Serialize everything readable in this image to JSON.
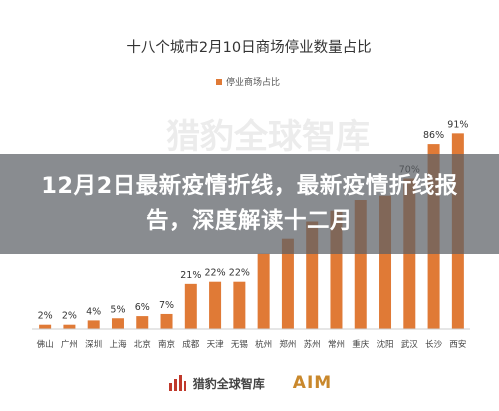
{
  "chart_data": {
    "type": "bar",
    "title": "十八个城市2月10日商场停业数量占比",
    "legend": "停业商场占比",
    "legend_position": "top-center",
    "categories": [
      "佛山",
      "广州",
      "深圳",
      "上海",
      "北京",
      "南京",
      "成都",
      "天津",
      "无锡",
      "杭州",
      "郑州",
      "苏州",
      "常州",
      "重庆",
      "沈阳",
      "武汉",
      "长沙",
      "西安"
    ],
    "values": [
      2,
      2,
      4,
      5,
      6,
      7,
      21,
      22,
      22,
      35,
      42,
      50,
      55,
      60,
      62,
      70,
      86,
      91
    ],
    "labels": [
      "2%",
      "2%",
      "4%",
      "5%",
      "6%",
      "7%",
      "21%",
      "22%",
      "22%",
      "",
      "",
      "",
      "",
      "",
      "",
      "70%",
      "86%",
      "91%"
    ],
    "ylim": [
      0,
      100
    ],
    "grid": false,
    "bar_color": "#e07a36"
  },
  "overlay": {
    "headline": "12月2日最新疫情折线，最新疫情折线报告，深度解读十二月"
  },
  "watermark": {
    "text": "猎豹全球智库"
  },
  "footer": {
    "logo_left_icon": "bar-chart-icon",
    "logo_left_text": "猎豹全球智库",
    "logo_right_text": "AIM"
  }
}
